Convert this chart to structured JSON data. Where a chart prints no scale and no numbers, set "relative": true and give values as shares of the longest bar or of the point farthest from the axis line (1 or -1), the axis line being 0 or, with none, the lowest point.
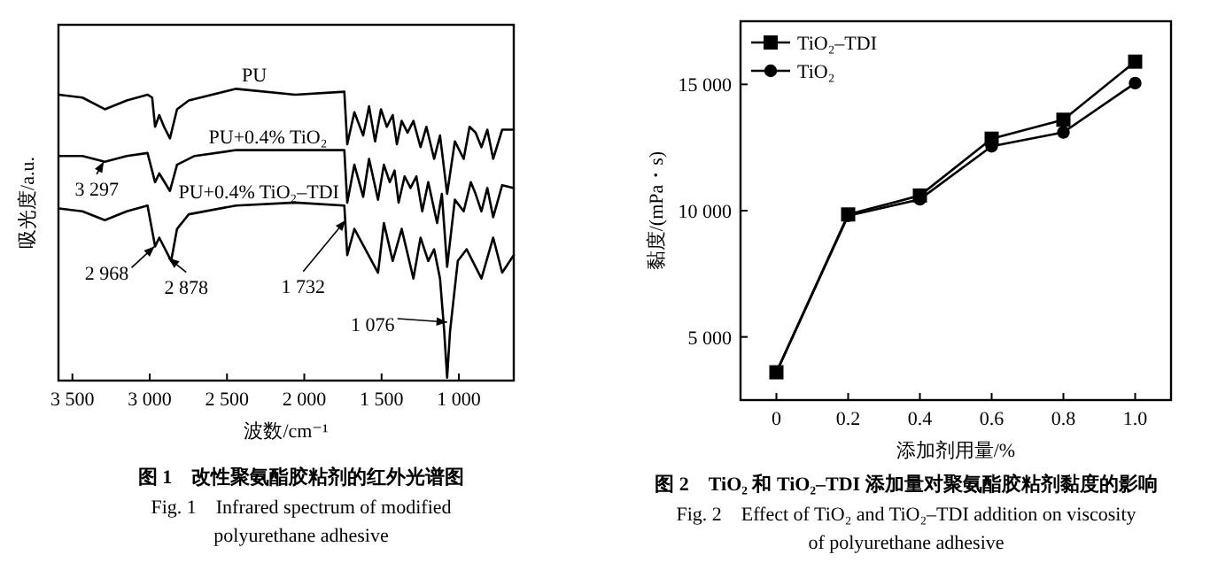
{
  "chart_data": [
    {
      "type": "line",
      "relative": true,
      "marker": "none",
      "legend": false,
      "grid": false,
      "xlabel": "波数/cm⁻¹",
      "ylabel": "吸光度/a.u.",
      "title": "图 1　改性聚氨酯胶粘剂的红外光谱图",
      "subtitle": "Fig. 1　Infrared spectrum of modified polyurethane adhesive",
      "tick_labels": "x",
      "xlim": [
        3590,
        645
      ],
      "xticks": [
        {
          "value": 3500,
          "label": "3 500"
        },
        {
          "value": 3000,
          "label": "3 000"
        },
        {
          "value": 2500,
          "label": "2 500"
        },
        {
          "value": 2000,
          "label": "2 000"
        },
        {
          "value": 1500,
          "label": "1 500"
        },
        {
          "value": 1000,
          "label": "1 000"
        }
      ],
      "series": [
        {
          "name": "PU",
          "color": "#000000",
          "x": [
            3588,
            3435,
            3290,
            3148,
            3014,
            2984,
            2965,
            2938,
            2907,
            2869,
            2823,
            2747,
            2441,
            2059,
            1741,
            1722,
            1676,
            1619,
            1581,
            1542,
            1504,
            1466,
            1428,
            1401,
            1370,
            1332,
            1294,
            1248,
            1210,
            1160,
            1122,
            1076,
            1026,
            969,
            931,
            892,
            854,
            816,
            778,
            720,
            645
          ],
          "values": [
            0.98,
            0.97,
            0.93,
            0.96,
            0.98,
            0.97,
            0.87,
            0.91,
            0.87,
            0.83,
            0.93,
            0.96,
            1.0,
            0.98,
            0.99,
            0.81,
            0.92,
            0.84,
            0.94,
            0.82,
            0.93,
            0.87,
            0.91,
            0.81,
            0.89,
            0.85,
            0.89,
            0.8,
            0.87,
            0.76,
            0.84,
            0.64,
            0.82,
            0.76,
            0.87,
            0.85,
            0.8,
            0.86,
            0.76,
            0.86,
            0.86
          ]
        },
        {
          "name": "PU+0.4% TiO₂",
          "color": "#000000",
          "x": [
            3588,
            3435,
            3290,
            3148,
            3014,
            2965,
            2938,
            2869,
            2823,
            2709,
            2441,
            2059,
            1741,
            1722,
            1676,
            1619,
            1581,
            1523,
            1485,
            1447,
            1416,
            1390,
            1351,
            1313,
            1275,
            1237,
            1198,
            1141,
            1110,
            1076,
            1026,
            969,
            923,
            892,
            854,
            816,
            778,
            720,
            645
          ],
          "values": [
            0.77,
            0.77,
            0.75,
            0.77,
            0.78,
            0.68,
            0.71,
            0.65,
            0.74,
            0.77,
            0.79,
            0.79,
            0.79,
            0.61,
            0.74,
            0.63,
            0.76,
            0.62,
            0.74,
            0.68,
            0.72,
            0.61,
            0.7,
            0.66,
            0.7,
            0.58,
            0.68,
            0.54,
            0.64,
            0.39,
            0.62,
            0.58,
            0.68,
            0.64,
            0.58,
            0.66,
            0.56,
            0.67,
            0.66
          ]
        },
        {
          "name": "PU+0.4% TiO₂–TDI",
          "color": "#000000",
          "x": [
            3588,
            3435,
            3290,
            3148,
            3014,
            2965,
            2938,
            2861,
            2823,
            2747,
            2441,
            2059,
            1741,
            1722,
            1676,
            1523,
            1485,
            1428,
            1370,
            1294,
            1248,
            1198,
            1160,
            1122,
            1095,
            1076,
            1057,
            1007,
            950,
            854,
            778,
            720,
            645
          ],
          "values": [
            0.59,
            0.58,
            0.55,
            0.58,
            0.6,
            0.46,
            0.49,
            0.41,
            0.52,
            0.57,
            0.6,
            0.61,
            0.6,
            0.43,
            0.52,
            0.37,
            0.54,
            0.41,
            0.52,
            0.35,
            0.49,
            0.41,
            0.45,
            0.35,
            0.17,
            0.01,
            0.17,
            0.41,
            0.45,
            0.35,
            0.49,
            0.37,
            0.43
          ]
        }
      ],
      "annotations": [
        {
          "text": "3 297",
          "x": 3297,
          "y": 0.75
        },
        {
          "text": "2 968",
          "x": 2968,
          "y": 0.46
        },
        {
          "text": "2 878",
          "x": 2878,
          "y": 0.42
        },
        {
          "text": "1 732",
          "x": 1732,
          "y": 0.55
        },
        {
          "text": "1 076",
          "x": 1076,
          "y": 0.2
        }
      ]
    },
    {
      "type": "line",
      "legend": "top left",
      "grid": false,
      "xlabel": "添加剂用量/%",
      "ylabel": "黏度/(mPa・s)",
      "title": "图 2　TiO₂ 和 TiO₂–TDI 添加量对聚氨酯胶粘剂黏度的影响",
      "subtitle": "Fig. 2　Effect of TiO₂ and TiO₂–TDI addition on viscosity of polyurethane adhesive",
      "x": [
        0,
        0.2,
        0.4,
        0.6,
        0.8,
        1.0
      ],
      "xlim": [
        -0.1,
        1.1
      ],
      "xticks": [
        0,
        0.2,
        0.4,
        0.6,
        0.8,
        {
          "value": 1,
          "label": "1.0"
        }
      ],
      "ylim": [
        2500,
        17500
      ],
      "yticks": [
        {
          "value": 5000,
          "label": "5 000"
        },
        {
          "value": 10000,
          "label": "10 000"
        },
        {
          "value": 15000,
          "label": "15 000"
        }
      ],
      "series": [
        {
          "name": "TiO₂–TDI",
          "color": "#000000",
          "marker": "square",
          "values": [
            3600,
            9850,
            10600,
            12850,
            13600,
            15900
          ]
        },
        {
          "name": "TiO₂",
          "color": "#000000",
          "marker": "circle",
          "values": [
            3600,
            9800,
            10450,
            12550,
            13100,
            15050
          ]
        }
      ]
    }
  ]
}
